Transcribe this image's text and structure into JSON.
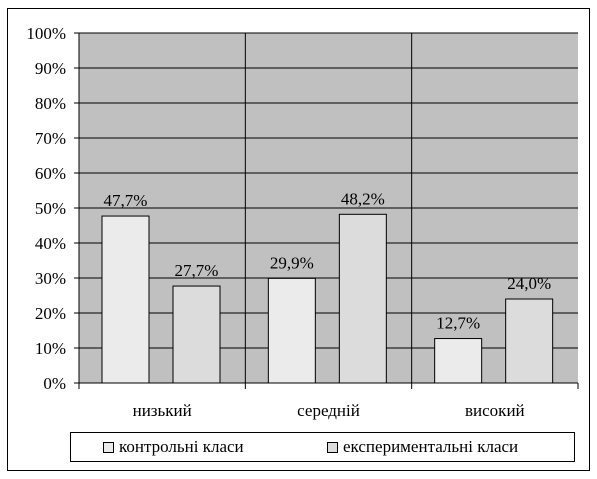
{
  "chart_data": {
    "type": "bar",
    "categories": [
      "низький",
      "середній",
      "високий"
    ],
    "series": [
      {
        "name": "контрольні класи",
        "values": [
          47.7,
          29.9,
          12.7
        ],
        "labels": [
          "47,7%",
          "29,9%",
          "12,7%"
        ],
        "color": "#ebebeb"
      },
      {
        "name": "експериментальні класи",
        "values": [
          27.7,
          48.2,
          24.0
        ],
        "labels": [
          "27,7%",
          "48,2%",
          "24,0%"
        ],
        "color": "#dcdcdc"
      }
    ],
    "yticks": [
      0,
      10,
      20,
      30,
      40,
      50,
      60,
      70,
      80,
      90,
      100
    ],
    "ytick_labels": [
      "0%",
      "10%",
      "20%",
      "30%",
      "40%",
      "50%",
      "60%",
      "70%",
      "80%",
      "90%",
      "100%"
    ],
    "ylim": [
      0,
      100
    ],
    "grid": true,
    "plot_background": "#c0c0c0",
    "legend_position": "bottom"
  }
}
